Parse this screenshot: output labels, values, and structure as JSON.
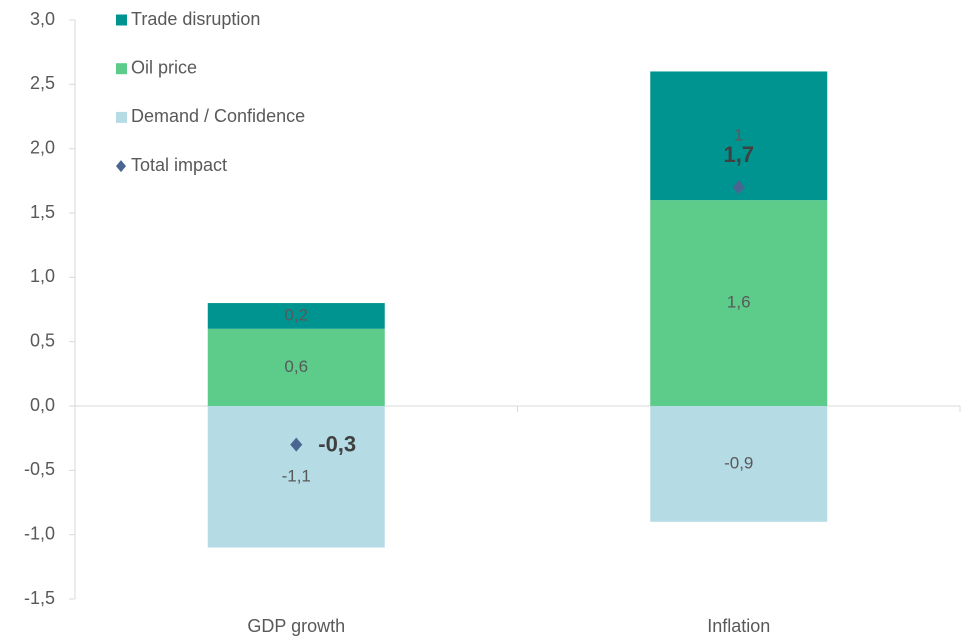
{
  "chart_data": {
    "type": "stacked_bar",
    "categories": [
      "GDP growth",
      "Inflation"
    ],
    "series": [
      {
        "name": "Trade disruption",
        "color": "#009490",
        "values": [
          0.2,
          1
        ],
        "value_labels": [
          "0,2",
          "1"
        ]
      },
      {
        "name": "Oil price",
        "color": "#5dcb89",
        "values": [
          0.6,
          1.6
        ],
        "value_labels": [
          "0,6",
          "1,6"
        ]
      },
      {
        "name": "Demand / Confidence",
        "color": "#b5dbe5",
        "values": [
          -1.1,
          -0.9
        ],
        "value_labels": [
          "-1,1",
          "-0,9"
        ]
      },
      {
        "name": "Total impact",
        "type": "marker",
        "color": "#4a6591",
        "values": [
          -0.3,
          1.7
        ],
        "value_labels": [
          "-0,3",
          "1,7"
        ]
      }
    ],
    "ylim": [
      -1.5,
      3.0
    ],
    "yticks": [
      {
        "value": -1.5,
        "label": "-1,5"
      },
      {
        "value": -1.0,
        "label": "-1,0"
      },
      {
        "value": -0.5,
        "label": "-0,5"
      },
      {
        "value": 0,
        "label": "0,0"
      },
      {
        "value": 0.5,
        "label": "0,5"
      },
      {
        "value": 1.0,
        "label": "1,0"
      },
      {
        "value": 1.5,
        "label": "1,5"
      },
      {
        "value": 2.0,
        "label": "2,0"
      },
      {
        "value": 2.5,
        "label": "2,5"
      },
      {
        "value": 3.0,
        "label": "3,0"
      }
    ],
    "legend": "top-left",
    "grid": false
  }
}
